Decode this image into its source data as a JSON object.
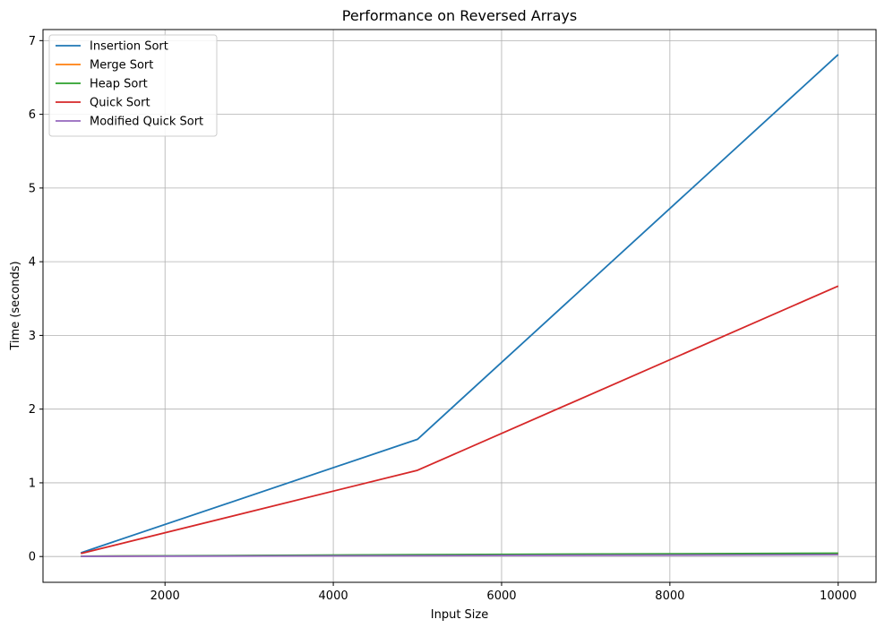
{
  "chart_data": {
    "type": "line",
    "title": "Performance on Reversed Arrays",
    "xlabel": "Input Size",
    "ylabel": "Time (seconds)",
    "x": [
      1000,
      5000,
      10000
    ],
    "xlim": [
      550,
      10450
    ],
    "ylim": [
      -0.35,
      7.15
    ],
    "xticks": [
      2000,
      4000,
      6000,
      8000,
      10000
    ],
    "yticks": [
      0,
      1,
      2,
      3,
      4,
      5,
      6,
      7
    ],
    "grid": true,
    "legend_position": "top-left",
    "series": [
      {
        "name": "Insertion Sort",
        "color": "#1f77b4",
        "values": [
          0.05,
          1.59,
          6.81
        ]
      },
      {
        "name": "Merge Sort",
        "color": "#ff7f0e",
        "values": [
          0.003,
          0.02,
          0.04
        ]
      },
      {
        "name": "Heap Sort",
        "color": "#2ca02c",
        "values": [
          0.004,
          0.025,
          0.045
        ]
      },
      {
        "name": "Quick Sort",
        "color": "#d62728",
        "values": [
          0.04,
          1.17,
          3.67
        ]
      },
      {
        "name": "Modified Quick Sort",
        "color": "#9467bd",
        "values": [
          0.002,
          0.012,
          0.025
        ]
      }
    ]
  }
}
